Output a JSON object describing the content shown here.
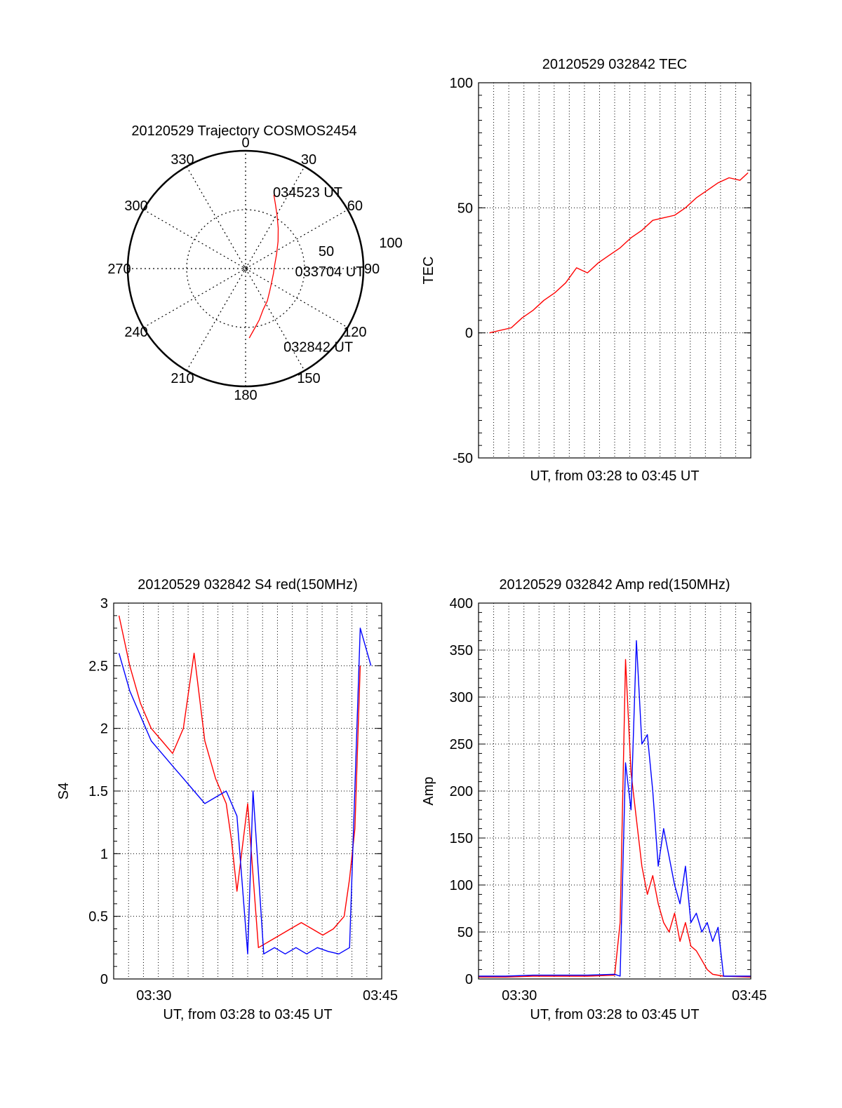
{
  "colors": {
    "red": "#ff0000",
    "blue": "#0000ff",
    "axis": "#000000",
    "grid": "#000000"
  },
  "chart_data": [
    {
      "type": "polar",
      "title": "20120529 Trajectory COSMOS2454",
      "azimuth_labels": [
        "0",
        "30",
        "60",
        "90",
        "120",
        "150",
        "180",
        "210",
        "240",
        "270",
        "300",
        "330"
      ],
      "radial_labels": [
        "50",
        "100"
      ],
      "radial_max": 100,
      "grid": true,
      "track": {
        "color": "red",
        "points": [
          {
            "az": 177,
            "r": 59
          },
          {
            "az": 172,
            "r": 52
          },
          {
            "az": 165,
            "r": 45
          },
          {
            "az": 157,
            "r": 38
          },
          {
            "az": 146,
            "r": 33
          },
          {
            "az": 133,
            "r": 28
          },
          {
            "az": 118,
            "r": 25
          },
          {
            "az": 100,
            "r": 24
          },
          {
            "az": 82,
            "r": 25
          },
          {
            "az": 65,
            "r": 29
          },
          {
            "az": 50,
            "r": 36
          },
          {
            "az": 39,
            "r": 44
          },
          {
            "az": 31,
            "r": 52
          },
          {
            "az": 25,
            "r": 60
          },
          {
            "az": 21,
            "r": 67
          }
        ]
      },
      "annotations": [
        {
          "text": "034523 UT",
          "az": 22,
          "r": 70
        },
        {
          "text": "033704 UT",
          "az": 93,
          "r": 45
        },
        {
          "text": "032842 UT",
          "az": 152,
          "r": 75
        }
      ]
    },
    {
      "type": "line",
      "title": "20120529 032842 TEC",
      "xlabel": "UT, from 03:28 to 03:45 UT",
      "ylabel": "TEC",
      "xlim": [
        0,
        1
      ],
      "ylim": [
        -50,
        100
      ],
      "yticks": [
        "100",
        "50",
        "0",
        "-50"
      ],
      "xticks": [],
      "grid": true,
      "series": [
        {
          "color": "red",
          "x": [
            0.04,
            0.08,
            0.12,
            0.16,
            0.2,
            0.24,
            0.28,
            0.32,
            0.36,
            0.4,
            0.44,
            0.48,
            0.52,
            0.56,
            0.6,
            0.64,
            0.68,
            0.72,
            0.76,
            0.8,
            0.84,
            0.88,
            0.92,
            0.96,
            0.99
          ],
          "y": [
            0,
            1,
            2,
            6,
            9,
            13,
            16,
            20,
            26,
            24,
            28,
            31,
            34,
            38,
            41,
            45,
            46,
            47,
            50,
            54,
            57,
            60,
            62,
            61,
            64
          ]
        }
      ]
    },
    {
      "type": "line",
      "title": "20120529 032842 S4 red(150MHz)",
      "xlabel": "UT, from 03:28 to 03:45 UT",
      "ylabel": "S4",
      "xlim": [
        0,
        1
      ],
      "ylim": [
        0,
        3
      ],
      "yticks": [
        "0",
        "0.5",
        "1",
        "1.5",
        "2",
        "2.5",
        "3"
      ],
      "xticks": [
        "03:30",
        "03:45"
      ],
      "grid": true,
      "series": [
        {
          "color": "red",
          "x": [
            0.02,
            0.06,
            0.1,
            0.14,
            0.18,
            0.22,
            0.26,
            0.3,
            0.34,
            0.38,
            0.42,
            0.44,
            0.46,
            0.5,
            0.54,
            0.58,
            0.62,
            0.66,
            0.7,
            0.74,
            0.78,
            0.82,
            0.86,
            0.88,
            0.9,
            0.92
          ],
          "y": [
            2.9,
            2.5,
            2.2,
            2.0,
            1.9,
            1.8,
            2.0,
            2.6,
            1.9,
            1.6,
            1.4,
            1.1,
            0.7,
            1.4,
            0.25,
            0.3,
            0.35,
            0.4,
            0.45,
            0.4,
            0.35,
            0.4,
            0.5,
            0.8,
            1.2,
            2.5
          ]
        },
        {
          "color": "blue",
          "x": [
            0.02,
            0.06,
            0.1,
            0.14,
            0.18,
            0.22,
            0.26,
            0.3,
            0.34,
            0.38,
            0.42,
            0.46,
            0.5,
            0.52,
            0.56,
            0.6,
            0.64,
            0.68,
            0.72,
            0.76,
            0.8,
            0.84,
            0.88,
            0.92,
            0.96
          ],
          "y": [
            2.6,
            2.3,
            2.1,
            1.9,
            1.8,
            1.7,
            1.6,
            1.5,
            1.4,
            1.45,
            1.5,
            1.3,
            0.2,
            1.5,
            0.2,
            0.25,
            0.2,
            0.25,
            0.2,
            0.25,
            0.22,
            0.2,
            0.25,
            2.8,
            2.5
          ]
        }
      ]
    },
    {
      "type": "line",
      "title": "20120529 032842 Amp red(150MHz)",
      "xlabel": "UT, from 03:28 to 03:45 UT",
      "ylabel": "Amp",
      "xlim": [
        0,
        1
      ],
      "ylim": [
        0,
        400
      ],
      "yticks": [
        "0",
        "50",
        "100",
        "150",
        "200",
        "250",
        "300",
        "350",
        "400"
      ],
      "xticks": [
        "03:30",
        "03:45"
      ],
      "grid": true,
      "series": [
        {
          "color": "red",
          "x": [
            0.0,
            0.1,
            0.2,
            0.3,
            0.4,
            0.5,
            0.52,
            0.54,
            0.56,
            0.58,
            0.6,
            0.62,
            0.64,
            0.66,
            0.68,
            0.7,
            0.72,
            0.74,
            0.76,
            0.78,
            0.8,
            0.82,
            0.84,
            0.86,
            0.9,
            1.0
          ],
          "y": [
            2,
            2,
            3,
            3,
            3,
            4,
            60,
            340,
            220,
            170,
            120,
            90,
            110,
            80,
            60,
            50,
            70,
            40,
            60,
            35,
            30,
            20,
            10,
            5,
            3,
            2
          ]
        },
        {
          "color": "blue",
          "x": [
            0.0,
            0.1,
            0.2,
            0.3,
            0.4,
            0.5,
            0.52,
            0.54,
            0.56,
            0.58,
            0.6,
            0.62,
            0.64,
            0.66,
            0.68,
            0.7,
            0.72,
            0.74,
            0.76,
            0.78,
            0.8,
            0.82,
            0.84,
            0.86,
            0.88,
            0.9,
            1.0
          ],
          "y": [
            3,
            3,
            4,
            4,
            4,
            5,
            3,
            230,
            180,
            360,
            250,
            260,
            200,
            120,
            160,
            130,
            100,
            80,
            120,
            60,
            70,
            50,
            60,
            40,
            55,
            3,
            3
          ]
        }
      ]
    }
  ]
}
